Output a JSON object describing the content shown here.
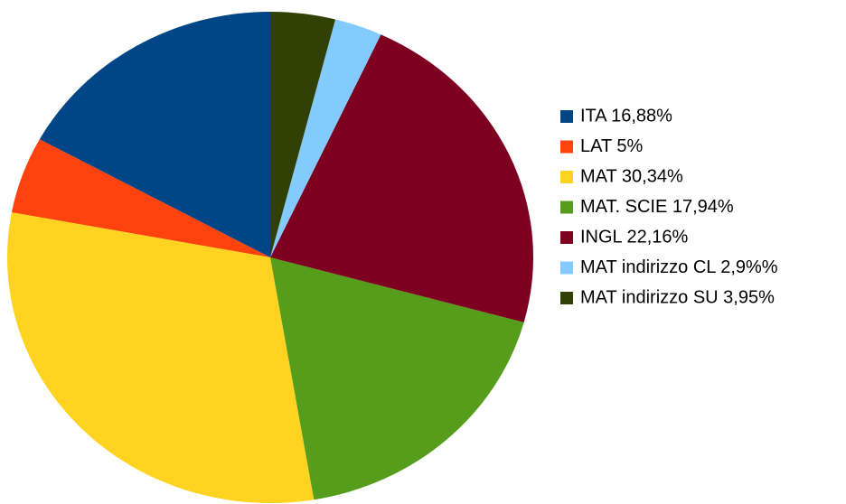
{
  "chart_data": {
    "type": "pie",
    "categories": [
      "ITA 16,88%",
      "LAT 5%",
      "MAT 30,34%",
      "MAT. SCIE 17,94%",
      "INGL 22,16%",
      "MAT indirizzo CL 2,9%%",
      "MAT indirizzo SU 3,95%"
    ],
    "values": [
      16.88,
      5,
      30.34,
      17.94,
      22.16,
      2.9,
      3.95
    ],
    "colors": [
      "#004586",
      "#ff420e",
      "#ffd320",
      "#579d1c",
      "#7e0021",
      "#83caff",
      "#314004"
    ],
    "legend": "right"
  }
}
